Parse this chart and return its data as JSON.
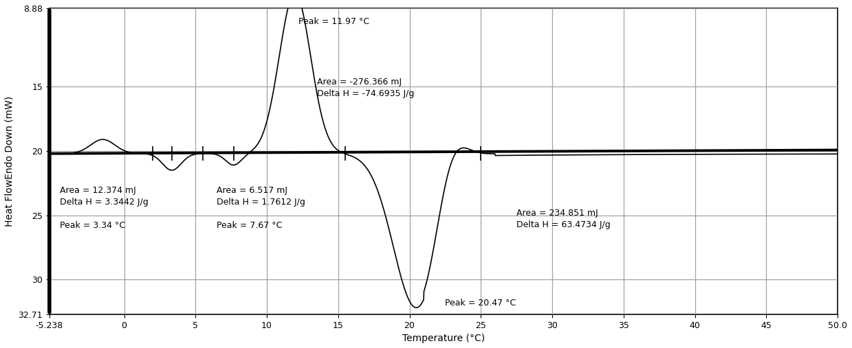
{
  "xlabel": "Temperature (°C)",
  "ylabel": "Heat FlowEndo Down (mW)",
  "xlim": [
    -5.238,
    50.0
  ],
  "ylim_top": 8.88,
  "ylim_bottom": 32.71,
  "xtick_vals": [
    -5.238,
    0,
    5,
    10,
    15,
    20,
    25,
    30,
    35,
    40,
    45,
    50.0
  ],
  "xtick_labels": [
    "-5.238",
    "0",
    "5",
    "10",
    "15",
    "20",
    "25",
    "30",
    "35",
    "40",
    "45",
    "50.0"
  ],
  "ytick_vals": [
    8.88,
    15,
    20,
    25,
    30,
    32.71
  ],
  "ytick_labels": [
    "8.88",
    "15",
    "20",
    "25",
    "30",
    "32.71"
  ],
  "baseline_y": 20.2,
  "background_color": "#ffffff",
  "line_color": "#000000",
  "grid_color": "#999999",
  "ann_peak1197_x": 12.2,
  "ann_peak1197_y": 9.6,
  "ann_area276_x": 13.5,
  "ann_area276_y": 14.3,
  "ann_area12_x": -4.5,
  "ann_area12_y": 22.7,
  "ann_area6_x": 6.5,
  "ann_area6_y": 22.7,
  "ann_area234_x": 27.5,
  "ann_area234_y": 24.5,
  "ann_peak2047_x": 22.5,
  "ann_peak2047_y": 31.5,
  "tick_mark_positions": [
    2.0,
    3.34,
    5.5,
    7.67,
    15.5,
    25.0
  ],
  "fontsize_annot": 9,
  "fontsize_axis": 9,
  "fontsize_label": 10
}
